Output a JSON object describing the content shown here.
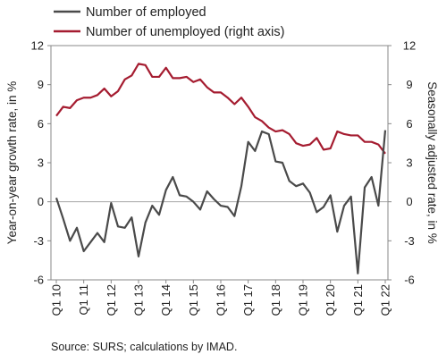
{
  "chart_data": {
    "type": "line",
    "legend_position": "top-left",
    "grid": false,
    "x_tick_labels": [
      "Q1 10",
      "Q1 11",
      "Q1 12",
      "Q1 13",
      "Q1 14",
      "Q1 15",
      "Q1 16",
      "Q1 17",
      "Q1 18",
      "Q1 19",
      "Q1 20",
      "Q1 21",
      "Q1 22"
    ],
    "ylabel": "Year-on-year growth rate, in %",
    "y2label": "Seasonally adjusted rate, in %",
    "ylim": [
      -6,
      12
    ],
    "y2lim": [
      -6,
      12
    ],
    "yticks": [
      -6,
      -3,
      0,
      3,
      6,
      9,
      12
    ],
    "y2ticks": [
      -6,
      -3,
      0,
      3,
      6,
      9,
      12
    ],
    "series": [
      {
        "name": "Number of employed",
        "axis": "left",
        "color": "#4a4a4a",
        "values": [
          0.3,
          -1.3,
          -3.0,
          -2.0,
          -3.8,
          -3.1,
          -2.4,
          -3.1,
          -0.1,
          -1.9,
          -2.0,
          -1.2,
          -4.2,
          -1.6,
          -0.3,
          -1.0,
          0.9,
          1.9,
          0.5,
          0.4,
          0.0,
          -0.6,
          0.8,
          0.2,
          -0.3,
          -0.4,
          -1.1,
          1.2,
          4.6,
          3.9,
          5.4,
          5.2,
          3.1,
          3.0,
          1.6,
          1.2,
          1.4,
          0.7,
          -0.8,
          -0.4,
          0.5,
          -2.3,
          -0.3,
          0.4,
          -5.5,
          1.1,
          1.9,
          -0.3,
          5.5
        ]
      },
      {
        "name": "Number of unemployed (right axis)",
        "axis": "right",
        "color": "#a51c30",
        "values": [
          6.6,
          7.3,
          7.2,
          7.8,
          8.0,
          8.0,
          8.2,
          8.7,
          8.1,
          8.5,
          9.4,
          9.7,
          10.6,
          10.5,
          9.6,
          9.6,
          10.3,
          9.5,
          9.5,
          9.6,
          9.2,
          9.4,
          8.8,
          8.4,
          8.4,
          8.0,
          7.5,
          8.0,
          7.3,
          6.5,
          6.2,
          5.7,
          5.4,
          5.5,
          5.2,
          4.5,
          4.3,
          4.4,
          4.9,
          4.0,
          4.1,
          5.4,
          5.2,
          5.1,
          5.1,
          4.6,
          4.6,
          4.4,
          3.7
        ]
      }
    ]
  },
  "source": "Source: SURS; calculations by IMAD."
}
